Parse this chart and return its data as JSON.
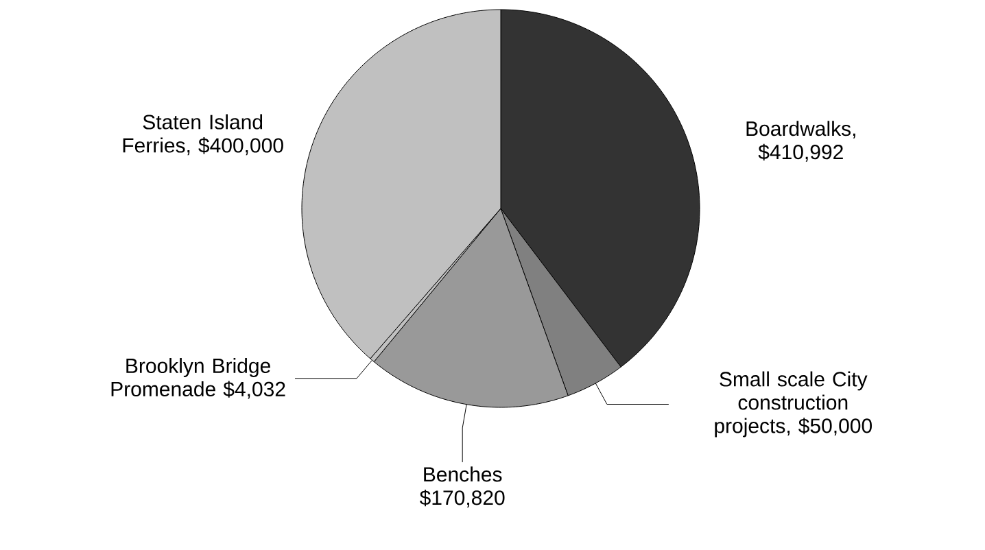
{
  "chart_data": {
    "type": "pie",
    "categories": [
      "Boardwalks",
      "Small scale City construction projects",
      "Benches",
      "Brooklyn Bridge Promenade",
      "Staten Island Ferries"
    ],
    "values": [
      410992,
      50000,
      170820,
      4032,
      400000
    ],
    "value_labels": [
      ", $410,992",
      ", $50,000",
      "$170,820",
      "$4,032",
      ", $400,000"
    ],
    "colors": [
      "#333333",
      "#808080",
      "#999999",
      "#c0c0c0",
      "#c0c0c0"
    ]
  }
}
